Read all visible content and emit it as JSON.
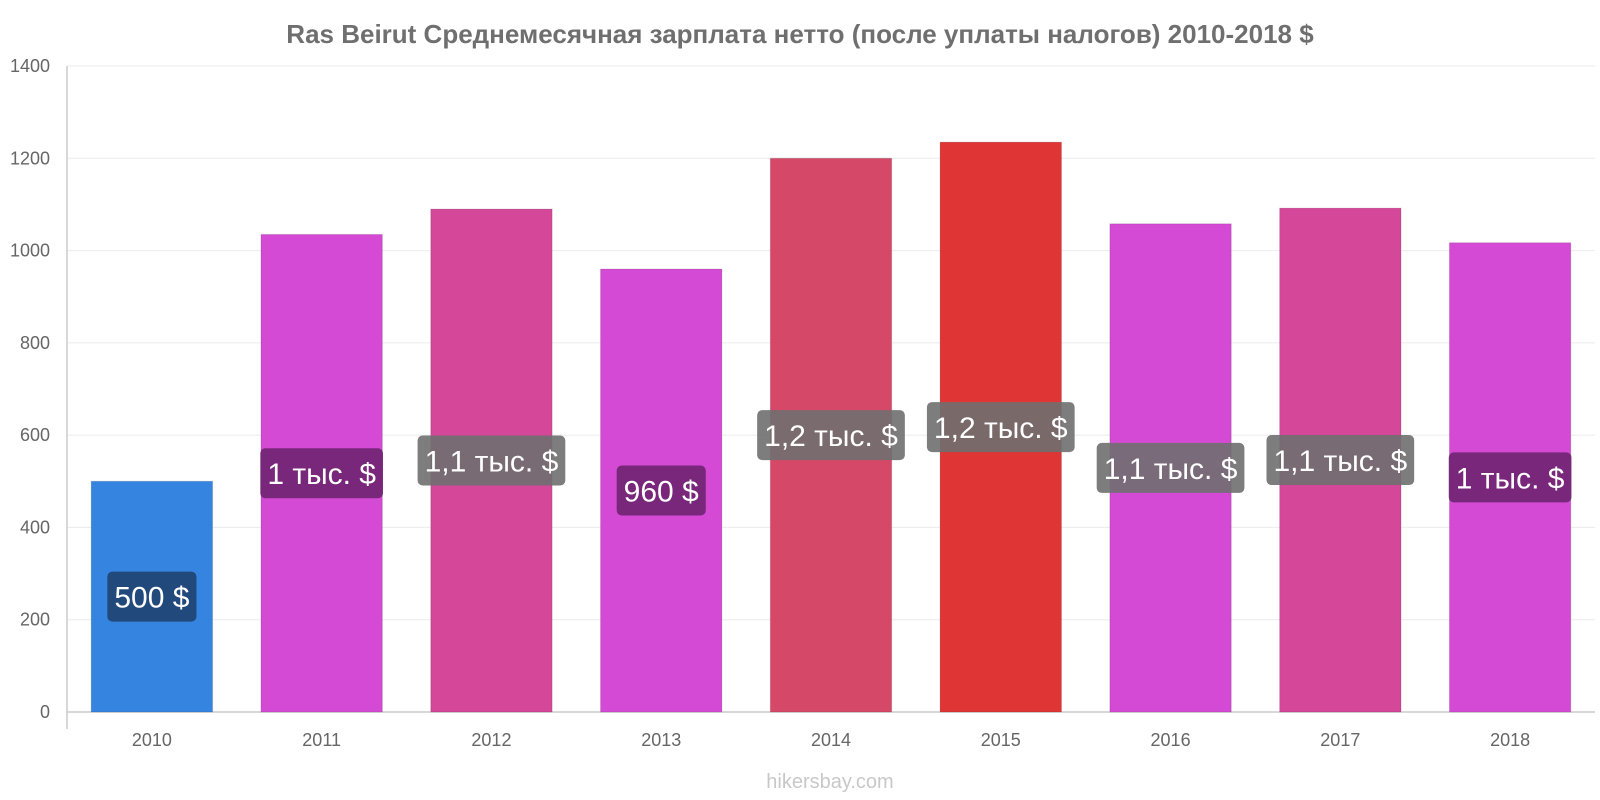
{
  "chart_data": {
    "type": "bar",
    "title": "Ras Beirut Среднемесячная зарплата нетто (после уплаты налогов) 2010-2018 $",
    "categories": [
      "2010",
      "2011",
      "2012",
      "2013",
      "2014",
      "2015",
      "2016",
      "2017",
      "2018"
    ],
    "values": [
      500,
      1035,
      1090,
      960,
      1200,
      1235,
      1058,
      1092,
      1017
    ],
    "data_labels": [
      "500 $",
      "1 тыс. $",
      "1,1 тыс. $",
      "960 $",
      "1,2 тыс. $",
      "1,2 тыс. $",
      "1,1 тыс. $",
      "1,1 тыс. $",
      "1 тыс. $"
    ],
    "bar_colors": [
      "#3584e0",
      "#d54ad4",
      "#d54799",
      "#d54ad4",
      "#d64868",
      "#e03535",
      "#d54ad4",
      "#d54799",
      "#d54ad4"
    ],
    "label_box_colors": [
      "#1f4370",
      "#6f2370",
      "#6f6f6f",
      "#6f2370",
      "#6f6f6f",
      "#6f6f6f",
      "#6f6f6f",
      "#6f6f6f",
      "#6f2370"
    ],
    "ylim": [
      0,
      1400
    ],
    "yticks": [
      0,
      200,
      400,
      600,
      800,
      1000,
      1200,
      1400
    ],
    "xlabel": "",
    "ylabel": "",
    "grid": true,
    "legend": "none"
  },
  "footer": {
    "watermark": "hikersbay.com"
  }
}
